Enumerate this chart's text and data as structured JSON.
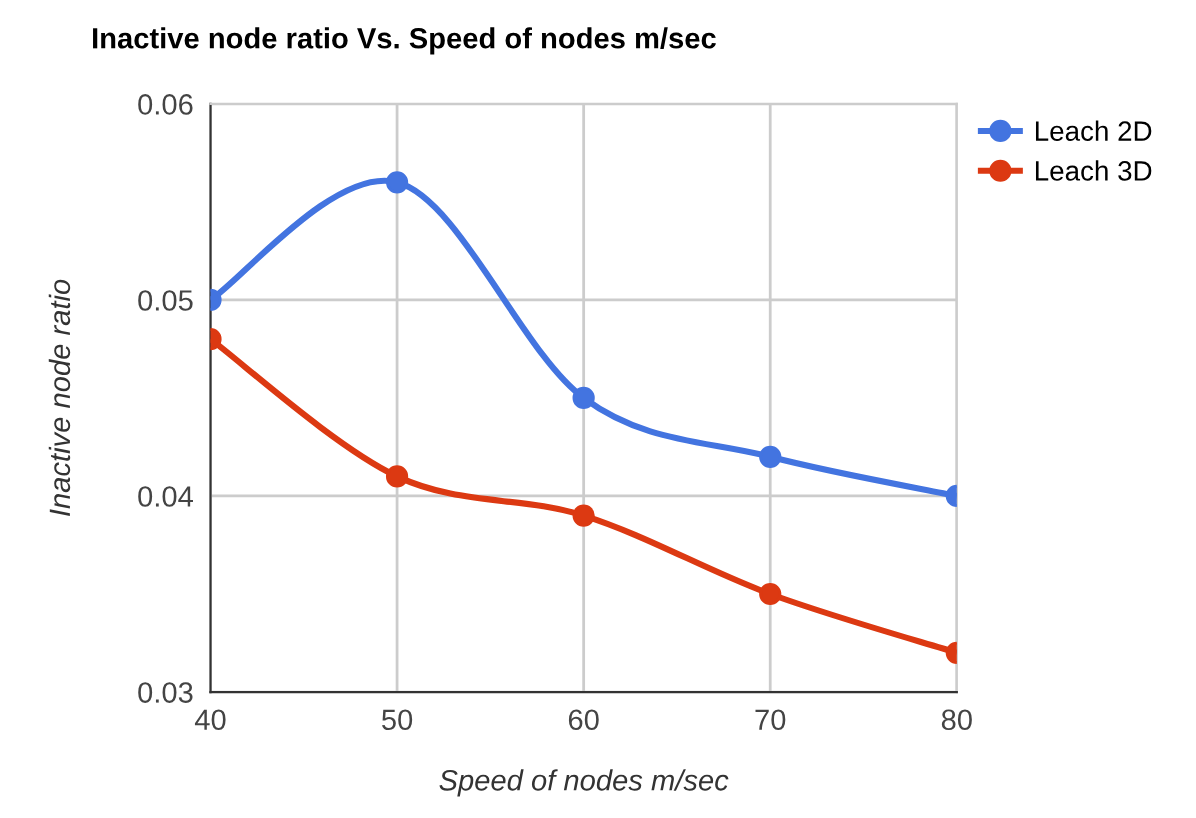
{
  "chart_data": {
    "type": "line",
    "title": "Inactive node ratio Vs. Speed of nodes m/sec",
    "xlabel": "Speed of nodes m/sec",
    "ylabel": "Inactive node ratio",
    "x": [
      40,
      50,
      60,
      70,
      80
    ],
    "series": [
      {
        "name": "Leach 2D",
        "color": "#4374e0",
        "values": [
          0.05,
          0.056,
          0.045,
          0.042,
          0.04
        ]
      },
      {
        "name": "Leach 3D",
        "color": "#dc3912",
        "values": [
          0.048,
          0.041,
          0.039,
          0.035,
          0.032
        ]
      }
    ],
    "xlim": [
      40,
      80
    ],
    "xticks": [
      40,
      50,
      60,
      70,
      80
    ],
    "ylim": [
      0.03,
      0.06
    ],
    "yticks": [
      {
        "value": 0.03,
        "label": "0.03"
      },
      {
        "value": 0.04,
        "label": "0.04"
      },
      {
        "value": 0.05,
        "label": "0.05"
      },
      {
        "value": 0.06,
        "label": "0.06"
      }
    ],
    "grid": true,
    "legend": "top right",
    "marker": "circle",
    "line_style": "solid"
  }
}
